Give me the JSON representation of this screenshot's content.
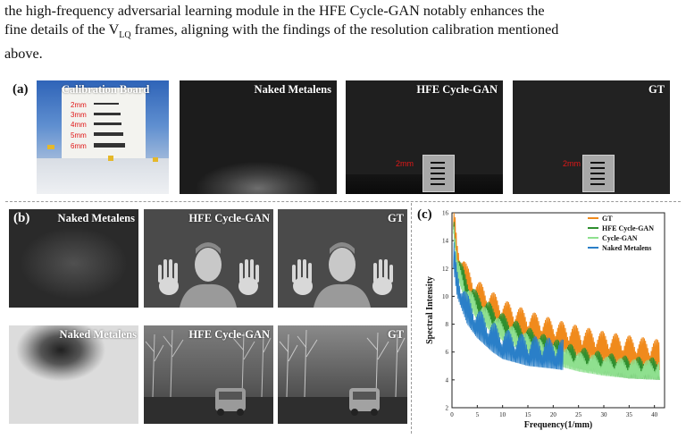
{
  "paragraph": {
    "line1": "the high-frequency adversarial learning module in the HFE Cycle-GAN notably enhances the",
    "line2_pre": "fine details of the V",
    "line2_sub": "LQ",
    "line2_post": " frames, aligning with the findings of the resolution calibration mentioned",
    "line3": "above."
  },
  "panel_a": {
    "label": "(a)",
    "titles": [
      "Calibration Board",
      "Naked Metalens",
      "HFE Cycle-GAN",
      "GT"
    ],
    "board_marks": [
      "2mm",
      "3mm",
      "4mm",
      "5mm",
      "6mm"
    ],
    "crop_mark": "2mm"
  },
  "panel_b": {
    "label": "(b)",
    "row1_titles": [
      "Naked Metalens",
      "HFE Cycle-GAN",
      "GT"
    ],
    "row2_titles": [
      "Naked Metalens",
      "HFE Cycle-GAN",
      "GT"
    ]
  },
  "panel_c": {
    "label": "(c)",
    "colors": {
      "gt": "#f08a1c",
      "hfe": "#2f8f2f",
      "cyclegan": "#8fe08f",
      "naked": "#2a7fc8"
    }
  },
  "chart_data": {
    "type": "line",
    "xlabel": "Frequency(1/mm)",
    "ylabel": "Spectral Intensity",
    "xlim": [
      0,
      42
    ],
    "ylim": [
      2,
      16
    ],
    "x_ticks": [
      0,
      5,
      10,
      15,
      20,
      25,
      30,
      35,
      40
    ],
    "y_ticks": [
      2,
      4,
      6,
      8,
      10,
      12,
      14,
      16
    ],
    "legend_position": "top-right",
    "grid": false,
    "series": [
      {
        "name": "GT",
        "x": [
          0.3,
          1,
          3,
          5,
          10,
          15,
          20,
          25,
          30,
          35,
          41
        ],
        "y": [
          15.0,
          12.0,
          10.0,
          9.0,
          7.6,
          6.8,
          6.2,
          5.7,
          5.3,
          5.0,
          4.7
        ]
      },
      {
        "name": "HFE Cycle-GAN",
        "x": [
          0.3,
          1,
          3,
          5,
          10,
          15,
          20,
          25,
          30,
          35,
          41
        ],
        "y": [
          14.8,
          11.6,
          9.8,
          8.7,
          7.2,
          6.2,
          5.4,
          4.8,
          4.4,
          4.1,
          4.0
        ]
      },
      {
        "name": "Cycle-GAN",
        "x": [
          0.3,
          1,
          3,
          5,
          10,
          15,
          20,
          25,
          30,
          35,
          41
        ],
        "y": [
          14.5,
          11.3,
          9.4,
          8.3,
          6.8,
          5.9,
          5.1,
          4.6,
          4.3,
          4.1,
          4.0
        ]
      },
      {
        "name": "Naked Metalens",
        "x": [
          0.3,
          1,
          3,
          5,
          8,
          10,
          15,
          20,
          22
        ],
        "y": [
          12.0,
          10.0,
          8.0,
          7.0,
          6.0,
          5.5,
          5.0,
          4.8,
          4.7
        ]
      }
    ]
  }
}
